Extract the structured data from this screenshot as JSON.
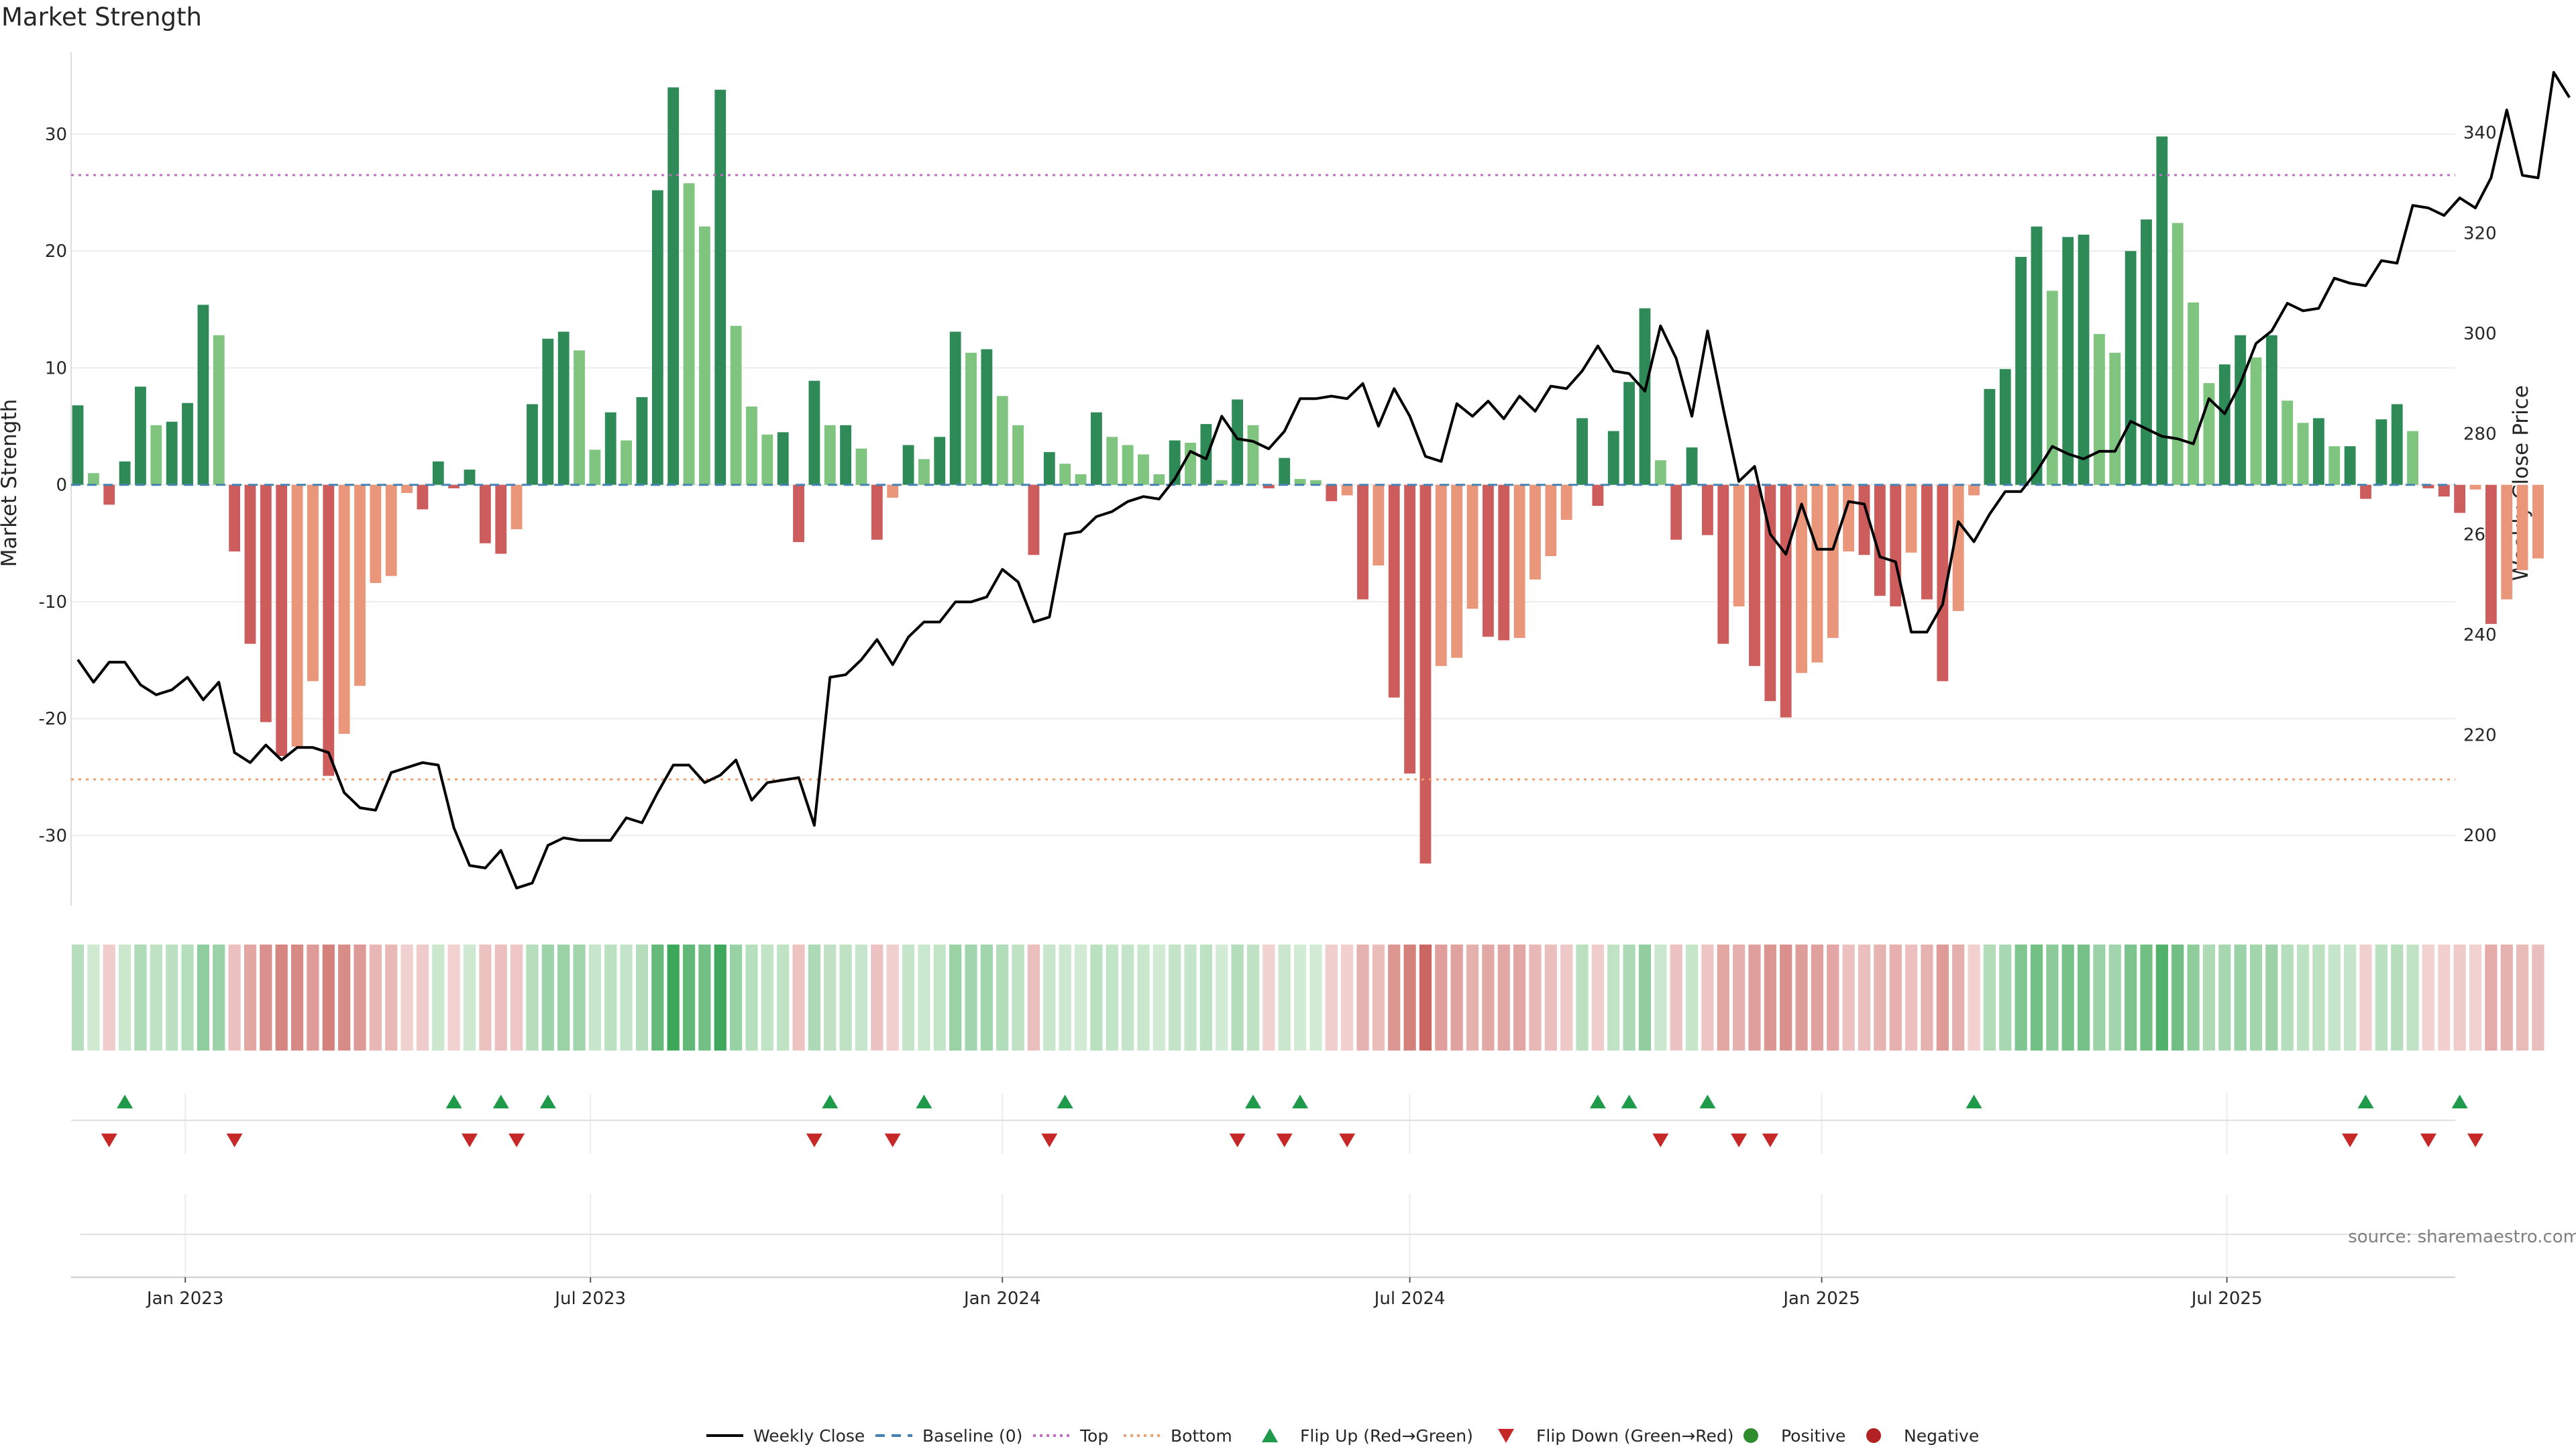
{
  "colors": {
    "strong_green": "#2e8b57",
    "light_green": "#7fc47f",
    "strong_red": "#cd5c5c",
    "light_red": "#e9967a",
    "close_line": "#000000",
    "baseline": "#4682b4",
    "top_line": "#bf6fbf",
    "bottom_line": "#f0a070",
    "flip_up": "#1e9a4a",
    "flip_down": "#c62828",
    "positive": "#2e8b2e",
    "negative": "#b22222"
  },
  "chart_data": {
    "type": "bar",
    "title": "Market Strength",
    "ylabel_left": "Market Strength",
    "ylabel_right": "Weekly Close Price",
    "source": "source: sharemaestro.com",
    "ylim_left": [
      -36,
      37
    ],
    "ylim_right": [
      186,
      356
    ],
    "yticks_left": [
      -30,
      -20,
      -10,
      0,
      10,
      20,
      30
    ],
    "yticks_right": [
      200,
      220,
      240,
      260,
      280,
      300,
      320,
      340
    ],
    "x_start": "2022-11-14",
    "x_range": [
      "2022-11-11",
      "2025-10-11"
    ],
    "x_step_days": 7,
    "xticks": [
      {
        "label": "Jan 2023",
        "date": "2023-01-01"
      },
      {
        "label": "Jul 2023",
        "date": "2023-07-01"
      },
      {
        "label": "Jan 2024",
        "date": "2024-01-01"
      },
      {
        "label": "Jul 2024",
        "date": "2024-07-01"
      },
      {
        "label": "Jan 2025",
        "date": "2025-01-01"
      },
      {
        "label": "Jul 2025",
        "date": "2025-07-01"
      }
    ],
    "top_level": 26.5,
    "bottom_level": -25.2,
    "strength": [
      6.8,
      1.0,
      -1.7,
      2.0,
      8.4,
      5.1,
      5.4,
      7.0,
      15.4,
      12.8,
      -5.7,
      -13.6,
      -20.3,
      -23.2,
      -22.4,
      -16.8,
      -24.9,
      -21.3,
      -17.2,
      -8.4,
      -7.8,
      -0.7,
      -2.1,
      2.0,
      -0.3,
      1.3,
      -5.0,
      -5.9,
      -3.8,
      6.9,
      12.5,
      13.1,
      11.5,
      3.0,
      6.2,
      3.8,
      7.5,
      25.2,
      34.0,
      25.8,
      22.1,
      33.8,
      13.6,
      6.7,
      4.3,
      4.5,
      -4.9,
      8.9,
      5.1,
      5.1,
      3.1,
      -4.7,
      -1.1,
      3.4,
      2.2,
      4.1,
      13.1,
      11.3,
      11.6,
      7.6,
      5.1,
      -6.0,
      2.8,
      1.8,
      0.9,
      6.2,
      4.1,
      3.4,
      2.6,
      0.9,
      3.8,
      3.6,
      5.2,
      0.4,
      7.3,
      5.1,
      -0.3,
      2.3,
      0.5,
      0.4,
      -1.4,
      -0.9,
      -9.8,
      -6.9,
      -18.2,
      -24.7,
      -32.4,
      -15.5,
      -14.8,
      -10.6,
      -13.0,
      -13.3,
      -13.1,
      -8.1,
      -6.1,
      -3.0,
      5.7,
      -1.8,
      4.6,
      8.8,
      15.1,
      2.1,
      -4.7,
      3.2,
      -4.3,
      -13.6,
      -10.4,
      -15.5,
      -18.5,
      -19.9,
      -16.1,
      -15.2,
      -13.1,
      -5.7,
      -6.0,
      -9.5,
      -10.4,
      -5.8,
      -9.8,
      -16.8,
      -10.8,
      -0.9,
      8.2,
      9.9,
      19.5,
      22.1,
      16.6,
      21.2,
      21.4,
      12.9,
      11.3,
      20.0,
      22.7,
      29.8,
      22.4,
      15.6,
      8.7,
      10.3,
      12.8,
      10.9,
      12.8,
      7.2,
      5.3,
      5.7,
      3.3,
      3.3,
      -1.2,
      5.6,
      6.9,
      4.6,
      -0.3,
      -1.0,
      -2.4,
      -0.4,
      -11.9,
      -9.8,
      -7.3,
      -6.3
    ],
    "close": [
      235.0,
      230.5,
      234.5,
      234.5,
      230.0,
      228.0,
      229.0,
      231.5,
      227.0,
      230.5,
      216.5,
      214.5,
      218.0,
      215.0,
      217.5,
      217.5,
      216.5,
      208.5,
      205.5,
      205.0,
      212.5,
      213.5,
      214.5,
      214.0,
      201.5,
      194.0,
      193.5,
      197.0,
      189.5,
      190.5,
      198.0,
      199.5,
      199.0,
      199.0,
      199.0,
      203.5,
      202.5,
      208.5,
      214.0,
      214.0,
      210.5,
      212.0,
      215.0,
      207.0,
      210.5,
      211.0,
      211.5,
      202.0,
      231.5,
      232.0,
      235.0,
      239.0,
      234.0,
      239.5,
      242.5,
      242.5,
      246.5,
      246.5,
      247.5,
      253.0,
      250.5,
      242.5,
      243.5,
      260.0,
      260.5,
      263.5,
      264.5,
      266.5,
      267.5,
      267.0,
      271.0,
      276.5,
      275.0,
      283.5,
      279.0,
      278.5,
      277.0,
      280.5,
      287.0,
      287.0,
      287.5,
      287.0,
      290.0,
      281.5,
      289.0,
      283.5,
      275.5,
      274.5,
      286.0,
      283.5,
      286.5,
      283.0,
      287.5,
      284.5,
      289.5,
      289.0,
      292.5,
      297.5,
      292.5,
      292.0,
      288.5,
      301.5,
      295.0,
      283.5,
      300.5,
      285.0,
      270.5,
      273.5,
      260.0,
      256.0,
      266.0,
      257.0,
      257.0,
      266.5,
      266.0,
      255.5,
      254.5,
      240.5,
      240.5,
      246.0,
      262.5,
      258.5,
      264.0,
      268.5,
      268.5,
      272.5,
      277.5,
      276.0,
      275.0,
      276.5,
      276.5,
      282.5,
      281.0,
      279.5,
      279.0,
      278.0,
      287.0,
      284.0,
      290.0,
      298.0,
      300.5,
      306.0,
      304.5,
      305.0,
      311.0,
      310.0,
      309.5,
      314.5,
      314.0,
      325.5,
      325.0,
      323.5,
      327.0,
      325.0,
      331.0,
      344.5,
      331.5,
      331.0,
      352.0,
      347.0
    ],
    "flip_up_index": [
      3,
      24,
      27,
      30,
      48,
      54,
      63,
      75,
      78,
      97,
      99,
      104,
      121,
      146,
      152
    ],
    "flip_down_index": [
      2,
      10,
      25,
      28,
      47,
      52,
      62,
      74,
      77,
      81,
      101,
      106,
      108,
      145,
      150,
      153
    ],
    "legend": [
      {
        "label": "Weekly Close",
        "type": "line"
      },
      {
        "label": "Baseline (0)",
        "type": "dash"
      },
      {
        "label": "Top",
        "type": "dotted-top"
      },
      {
        "label": "Bottom",
        "type": "dotted-bottom"
      },
      {
        "label": "Flip Up (Red→Green)",
        "type": "tri-up"
      },
      {
        "label": "Flip Down (Green→Red)",
        "type": "tri-down"
      },
      {
        "label": "Positive",
        "type": "dot-pos"
      },
      {
        "label": "Negative",
        "type": "dot-neg"
      }
    ]
  }
}
